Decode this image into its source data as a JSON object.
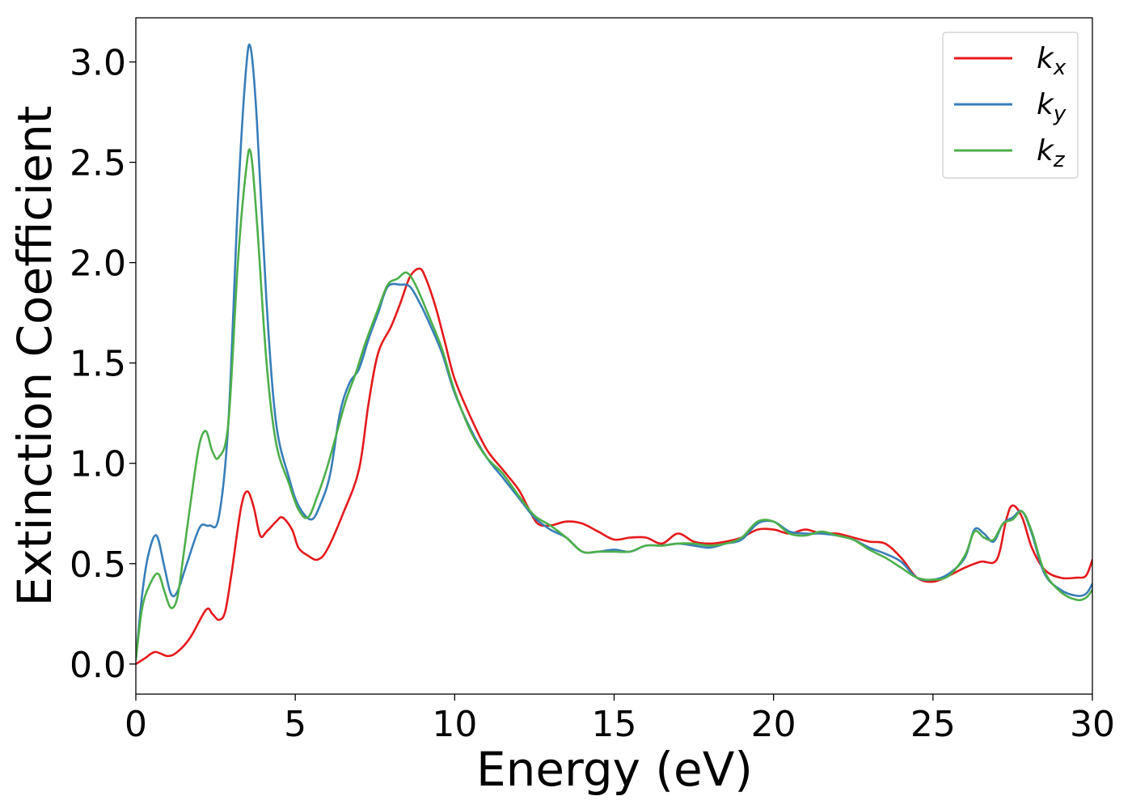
{
  "chart_data": {
    "type": "line",
    "title": "",
    "xlabel": "Energy (eV)",
    "ylabel": "Extinction Coefficient",
    "xlim": [
      0,
      30
    ],
    "ylim": [
      -0.15,
      3.22
    ],
    "xticks": [
      0,
      5,
      10,
      15,
      20,
      25,
      30
    ],
    "xtick_labels": [
      "0",
      "5",
      "10",
      "15",
      "20",
      "25",
      "30"
    ],
    "yticks": [
      0.0,
      0.5,
      1.0,
      1.5,
      2.0,
      2.5,
      3.0
    ],
    "ytick_labels": [
      "0.0",
      "0.5",
      "1.0",
      "1.5",
      "2.0",
      "2.5",
      "3.0"
    ],
    "grid": false,
    "legend_position": "top-right",
    "series": [
      {
        "name": "k",
        "name_subscript": "x",
        "color": "#e41a1c",
        "points": [
          [
            0,
            0.0
          ],
          [
            0.3,
            0.03
          ],
          [
            0.6,
            0.06
          ],
          [
            1.0,
            0.04
          ],
          [
            1.3,
            0.06
          ],
          [
            1.7,
            0.13
          ],
          [
            2.2,
            0.27
          ],
          [
            2.4,
            0.25
          ],
          [
            2.6,
            0.22
          ],
          [
            2.8,
            0.26
          ],
          [
            3.0,
            0.45
          ],
          [
            3.3,
            0.78
          ],
          [
            3.5,
            0.86
          ],
          [
            3.7,
            0.78
          ],
          [
            3.9,
            0.64
          ],
          [
            4.1,
            0.66
          ],
          [
            4.4,
            0.71
          ],
          [
            4.6,
            0.73
          ],
          [
            4.9,
            0.67
          ],
          [
            5.1,
            0.58
          ],
          [
            5.4,
            0.54
          ],
          [
            5.7,
            0.52
          ],
          [
            6.0,
            0.57
          ],
          [
            6.5,
            0.75
          ],
          [
            7.0,
            0.97
          ],
          [
            7.3,
            1.3
          ],
          [
            7.6,
            1.55
          ],
          [
            8.0,
            1.68
          ],
          [
            8.3,
            1.8
          ],
          [
            8.6,
            1.93
          ],
          [
            8.9,
            1.97
          ],
          [
            9.1,
            1.92
          ],
          [
            9.4,
            1.78
          ],
          [
            9.7,
            1.6
          ],
          [
            10.0,
            1.42
          ],
          [
            10.5,
            1.23
          ],
          [
            11.0,
            1.07
          ],
          [
            11.5,
            0.97
          ],
          [
            12.0,
            0.87
          ],
          [
            12.3,
            0.78
          ],
          [
            12.6,
            0.7
          ],
          [
            13.0,
            0.69
          ],
          [
            13.5,
            0.71
          ],
          [
            14.0,
            0.7
          ],
          [
            14.5,
            0.66
          ],
          [
            15.0,
            0.62
          ],
          [
            15.5,
            0.63
          ],
          [
            16.0,
            0.63
          ],
          [
            16.5,
            0.6
          ],
          [
            17.0,
            0.65
          ],
          [
            17.5,
            0.61
          ],
          [
            18.0,
            0.6
          ],
          [
            18.5,
            0.61
          ],
          [
            19.0,
            0.63
          ],
          [
            19.5,
            0.67
          ],
          [
            20.0,
            0.67
          ],
          [
            20.5,
            0.65
          ],
          [
            21.0,
            0.67
          ],
          [
            21.5,
            0.65
          ],
          [
            22.0,
            0.65
          ],
          [
            22.5,
            0.63
          ],
          [
            23.0,
            0.61
          ],
          [
            23.5,
            0.6
          ],
          [
            24.0,
            0.53
          ],
          [
            24.5,
            0.43
          ],
          [
            25.0,
            0.41
          ],
          [
            25.5,
            0.44
          ],
          [
            26.0,
            0.48
          ],
          [
            26.5,
            0.51
          ],
          [
            27.0,
            0.52
          ],
          [
            27.3,
            0.72
          ],
          [
            27.5,
            0.79
          ],
          [
            27.8,
            0.73
          ],
          [
            28.1,
            0.58
          ],
          [
            28.5,
            0.47
          ],
          [
            29.0,
            0.43
          ],
          [
            29.5,
            0.43
          ],
          [
            29.8,
            0.44
          ],
          [
            30.0,
            0.52
          ]
        ]
      },
      {
        "name": "k",
        "name_subscript": "y",
        "color": "#377eb8",
        "points": [
          [
            0,
            0.02
          ],
          [
            0.2,
            0.35
          ],
          [
            0.4,
            0.55
          ],
          [
            0.65,
            0.64
          ],
          [
            0.9,
            0.48
          ],
          [
            1.1,
            0.35
          ],
          [
            1.3,
            0.36
          ],
          [
            1.6,
            0.5
          ],
          [
            2.0,
            0.68
          ],
          [
            2.3,
            0.69
          ],
          [
            2.6,
            0.73
          ],
          [
            2.9,
            1.2
          ],
          [
            3.2,
            2.3
          ],
          [
            3.45,
            2.95
          ],
          [
            3.6,
            3.07
          ],
          [
            3.8,
            2.7
          ],
          [
            4.1,
            1.8
          ],
          [
            4.4,
            1.2
          ],
          [
            4.8,
            0.93
          ],
          [
            5.1,
            0.79
          ],
          [
            5.5,
            0.72
          ],
          [
            5.8,
            0.8
          ],
          [
            6.1,
            0.95
          ],
          [
            6.4,
            1.25
          ],
          [
            6.7,
            1.4
          ],
          [
            7.0,
            1.47
          ],
          [
            7.3,
            1.62
          ],
          [
            7.6,
            1.75
          ],
          [
            7.9,
            1.88
          ],
          [
            8.3,
            1.89
          ],
          [
            8.6,
            1.88
          ],
          [
            8.9,
            1.8
          ],
          [
            9.2,
            1.7
          ],
          [
            9.6,
            1.55
          ],
          [
            10.0,
            1.35
          ],
          [
            10.5,
            1.17
          ],
          [
            11.0,
            1.03
          ],
          [
            11.5,
            0.93
          ],
          [
            12.0,
            0.83
          ],
          [
            12.5,
            0.73
          ],
          [
            13.0,
            0.67
          ],
          [
            13.5,
            0.63
          ],
          [
            14.0,
            0.56
          ],
          [
            14.5,
            0.56
          ],
          [
            15.0,
            0.57
          ],
          [
            15.5,
            0.56
          ],
          [
            16.0,
            0.59
          ],
          [
            16.5,
            0.59
          ],
          [
            17.0,
            0.6
          ],
          [
            17.5,
            0.59
          ],
          [
            18.0,
            0.58
          ],
          [
            18.5,
            0.6
          ],
          [
            19.0,
            0.62
          ],
          [
            19.5,
            0.7
          ],
          [
            20.0,
            0.71
          ],
          [
            20.5,
            0.66
          ],
          [
            21.0,
            0.65
          ],
          [
            21.5,
            0.65
          ],
          [
            22.0,
            0.64
          ],
          [
            22.5,
            0.62
          ],
          [
            23.0,
            0.58
          ],
          [
            23.5,
            0.55
          ],
          [
            24.0,
            0.51
          ],
          [
            24.5,
            0.43
          ],
          [
            25.0,
            0.42
          ],
          [
            25.5,
            0.45
          ],
          [
            26.0,
            0.53
          ],
          [
            26.3,
            0.67
          ],
          [
            26.6,
            0.65
          ],
          [
            26.9,
            0.61
          ],
          [
            27.2,
            0.7
          ],
          [
            27.5,
            0.73
          ],
          [
            27.8,
            0.76
          ],
          [
            28.1,
            0.65
          ],
          [
            28.5,
            0.45
          ],
          [
            29.0,
            0.37
          ],
          [
            29.5,
            0.34
          ],
          [
            29.8,
            0.35
          ],
          [
            30.0,
            0.4
          ]
        ]
      },
      {
        "name": "k",
        "name_subscript": "z",
        "color": "#4daf4a",
        "points": [
          [
            0,
            0.02
          ],
          [
            0.2,
            0.28
          ],
          [
            0.45,
            0.4
          ],
          [
            0.7,
            0.45
          ],
          [
            0.9,
            0.36
          ],
          [
            1.1,
            0.28
          ],
          [
            1.3,
            0.33
          ],
          [
            1.5,
            0.55
          ],
          [
            1.8,
            0.9
          ],
          [
            2.0,
            1.1
          ],
          [
            2.2,
            1.16
          ],
          [
            2.4,
            1.06
          ],
          [
            2.6,
            1.03
          ],
          [
            2.9,
            1.2
          ],
          [
            3.2,
            2.0
          ],
          [
            3.45,
            2.45
          ],
          [
            3.6,
            2.55
          ],
          [
            3.8,
            2.2
          ],
          [
            4.1,
            1.5
          ],
          [
            4.4,
            1.1
          ],
          [
            4.8,
            0.9
          ],
          [
            5.1,
            0.77
          ],
          [
            5.4,
            0.73
          ],
          [
            5.7,
            0.84
          ],
          [
            6.0,
            0.98
          ],
          [
            6.3,
            1.15
          ],
          [
            6.6,
            1.32
          ],
          [
            6.9,
            1.45
          ],
          [
            7.2,
            1.6
          ],
          [
            7.6,
            1.77
          ],
          [
            7.9,
            1.89
          ],
          [
            8.2,
            1.92
          ],
          [
            8.5,
            1.95
          ],
          [
            8.8,
            1.88
          ],
          [
            9.2,
            1.73
          ],
          [
            9.6,
            1.57
          ],
          [
            10.0,
            1.36
          ],
          [
            10.5,
            1.16
          ],
          [
            11.0,
            1.03
          ],
          [
            11.5,
            0.95
          ],
          [
            12.0,
            0.84
          ],
          [
            12.5,
            0.74
          ],
          [
            13.0,
            0.69
          ],
          [
            13.5,
            0.63
          ],
          [
            14.0,
            0.56
          ],
          [
            14.5,
            0.56
          ],
          [
            15.0,
            0.56
          ],
          [
            15.5,
            0.56
          ],
          [
            16.0,
            0.59
          ],
          [
            16.5,
            0.59
          ],
          [
            17.0,
            0.6
          ],
          [
            17.5,
            0.6
          ],
          [
            18.0,
            0.59
          ],
          [
            18.5,
            0.6
          ],
          [
            19.0,
            0.63
          ],
          [
            19.5,
            0.71
          ],
          [
            20.0,
            0.71
          ],
          [
            20.5,
            0.65
          ],
          [
            21.0,
            0.64
          ],
          [
            21.5,
            0.66
          ],
          [
            22.0,
            0.64
          ],
          [
            22.5,
            0.62
          ],
          [
            23.0,
            0.57
          ],
          [
            23.5,
            0.53
          ],
          [
            24.0,
            0.48
          ],
          [
            24.5,
            0.43
          ],
          [
            25.0,
            0.42
          ],
          [
            25.5,
            0.44
          ],
          [
            26.0,
            0.54
          ],
          [
            26.3,
            0.66
          ],
          [
            26.6,
            0.63
          ],
          [
            26.9,
            0.62
          ],
          [
            27.2,
            0.7
          ],
          [
            27.5,
            0.72
          ],
          [
            27.8,
            0.76
          ],
          [
            28.1,
            0.66
          ],
          [
            28.5,
            0.46
          ],
          [
            29.0,
            0.36
          ],
          [
            29.5,
            0.32
          ],
          [
            29.8,
            0.33
          ],
          [
            30.0,
            0.37
          ]
        ]
      }
    ]
  }
}
